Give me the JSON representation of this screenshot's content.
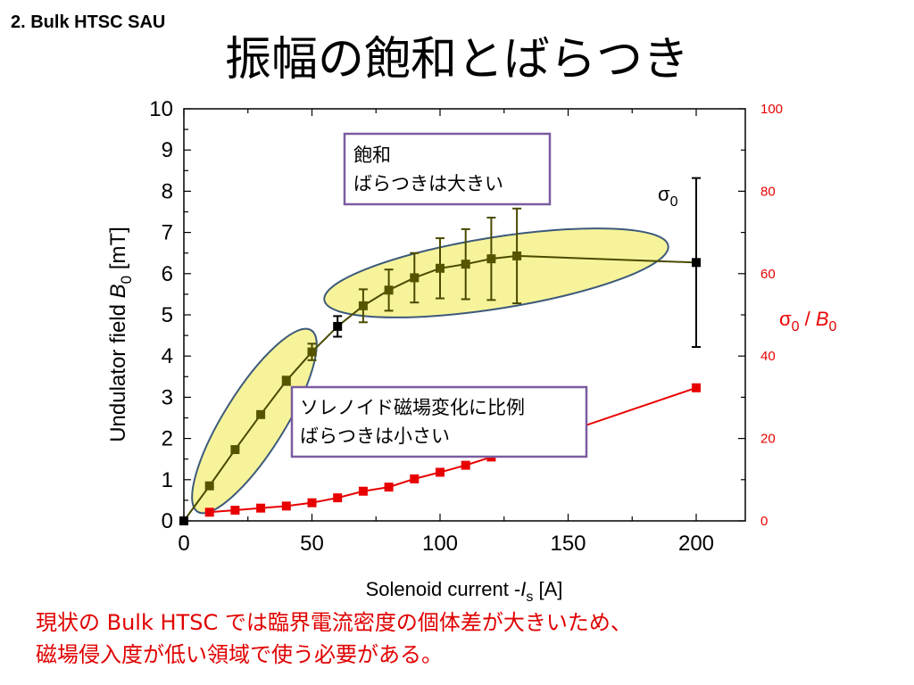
{
  "header": {
    "section": "2. Bulk HTSC SAU",
    "title": "振幅の飽和とばらつき"
  },
  "colors": {
    "left_series": "#4a4a00",
    "marker_left": "#555500",
    "right_series": "#e80000",
    "highlight_fill": "#f7f39a",
    "highlight_stroke": "#3c5a7a",
    "annotation_border": "#7a5ca0",
    "footer_text": "#e00000"
  },
  "chart_data": {
    "type": "scatter",
    "xlabel": "Solenoid current -I_s [A]",
    "xlabel_parts": {
      "prefix": "Solenoid current -",
      "var": "I",
      "sub": "s",
      "suffix": " [A]"
    },
    "ylabel": "Undulator field B_0 [mT]",
    "ylabel_parts": {
      "prefix": "Undulator field ",
      "var": "B",
      "sub": "0",
      "suffix": " [mT]"
    },
    "y2label": "σ0 / B0",
    "y2label_parts": {
      "sigma": "σ",
      "sub1": "0",
      "mid": " / ",
      "var": "B",
      "sub2": "0"
    },
    "xlim": [
      0,
      220
    ],
    "ylim": [
      0,
      10
    ],
    "y2lim": [
      0,
      100
    ],
    "xticks": [
      0,
      50,
      100,
      150,
      200
    ],
    "yticks": [
      0,
      1,
      2,
      3,
      4,
      5,
      6,
      7,
      8,
      9,
      10
    ],
    "y2ticks": [
      0,
      20,
      40,
      60,
      80,
      100
    ],
    "series": [
      {
        "axis": "left",
        "points": [
          {
            "x": 0,
            "y": 0,
            "err": 0
          },
          {
            "x": 10,
            "y": 0.85,
            "err": 0
          },
          {
            "x": 20,
            "y": 1.73,
            "err": 0
          },
          {
            "x": 30,
            "y": 2.58,
            "err": 0
          },
          {
            "x": 40,
            "y": 3.4,
            "err": 0.1
          },
          {
            "x": 50,
            "y": 4.1,
            "err": 0.2
          },
          {
            "x": 60,
            "y": 4.72,
            "err": 0.25
          },
          {
            "x": 70,
            "y": 5.22,
            "err": 0.4
          },
          {
            "x": 80,
            "y": 5.6,
            "err": 0.5
          },
          {
            "x": 90,
            "y": 5.9,
            "err": 0.6
          },
          {
            "x": 100,
            "y": 6.13,
            "err": 0.73
          },
          {
            "x": 110,
            "y": 6.23,
            "err": 0.85
          },
          {
            "x": 120,
            "y": 6.36,
            "err": 1.0
          },
          {
            "x": 130,
            "y": 6.43,
            "err": 1.15
          },
          {
            "x": 200,
            "y": 6.27,
            "err": 2.05
          }
        ]
      },
      {
        "axis": "right",
        "points": [
          {
            "x": 10,
            "y": 2.1
          },
          {
            "x": 20,
            "y": 2.6
          },
          {
            "x": 30,
            "y": 3.1
          },
          {
            "x": 40,
            "y": 3.6
          },
          {
            "x": 50,
            "y": 4.4
          },
          {
            "x": 60,
            "y": 5.6
          },
          {
            "x": 70,
            "y": 7.2
          },
          {
            "x": 80,
            "y": 8.2
          },
          {
            "x": 90,
            "y": 10.2
          },
          {
            "x": 100,
            "y": 11.8
          },
          {
            "x": 110,
            "y": 13.5
          },
          {
            "x": 120,
            "y": 15.5
          },
          {
            "x": 130,
            "y": 17.5
          },
          {
            "x": 200,
            "y": 32.3
          }
        ]
      }
    ],
    "annotations": {
      "sigma_label": "σ",
      "sigma_sub": "0",
      "box1_line1": "飽和",
      "box1_line2": "ばらつきは大きい",
      "box2_line1": "ソレノイド磁場変化に比例",
      "box2_line2": "ばらつきは小さい"
    }
  },
  "footer": {
    "line1": "現状の Bulk HTSC では臨界電流密度の個体差が大きいため、",
    "line2": "磁場侵入度が低い領域で使う必要がある。"
  }
}
